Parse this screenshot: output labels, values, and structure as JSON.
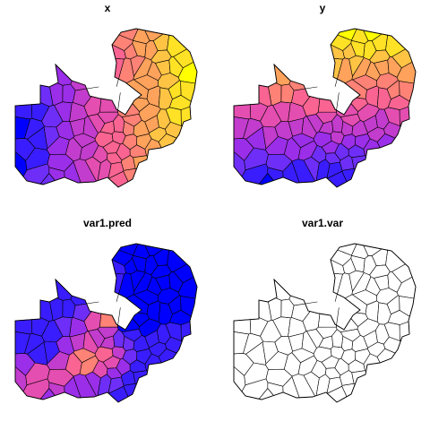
{
  "panels": [
    {
      "id": "x",
      "title": "x",
      "fill": "x"
    },
    {
      "id": "y",
      "title": "y",
      "fill": "y"
    },
    {
      "id": "var1_pred",
      "title": "var1.pred",
      "fill": "pred"
    },
    {
      "id": "var1_var",
      "title": "var1.var",
      "fill": "none"
    }
  ],
  "palette": {
    "stops": [
      "#0000ff",
      "#5b2eff",
      "#a12ee6",
      "#de47b8",
      "#ff6b8a",
      "#ff9d5e",
      "#ffd23a",
      "#ffff00"
    ],
    "outline": "#000000",
    "empty_fill": "#ffffff"
  }
}
